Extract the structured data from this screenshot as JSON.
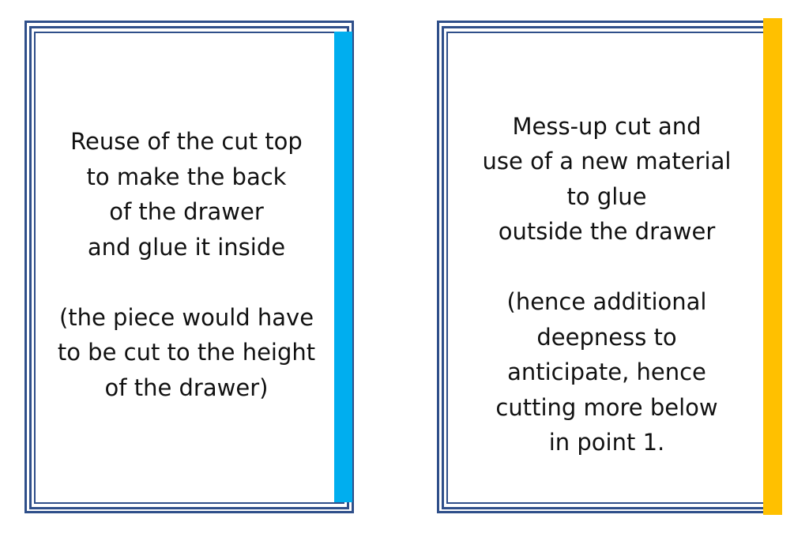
{
  "cards": [
    {
      "accent_color": "#00aeef",
      "frame_color": "#2f4f8a",
      "paragraph1": [
        "Reuse of the cut top",
        "to make the back",
        "of the drawer",
        "and glue it inside"
      ],
      "paragraph2": [
        "(the piece would have",
        "to be cut to the height",
        "of the drawer)"
      ]
    },
    {
      "accent_color": "#ffc000",
      "frame_color": "#2f4f8a",
      "paragraph1": [
        "Mess-up cut and",
        "use of a new material",
        "to glue",
        "outside the drawer"
      ],
      "paragraph2": [
        "(hence additional",
        "deepness to",
        "anticipate, hence",
        "cutting more below",
        "in point 1."
      ]
    }
  ]
}
